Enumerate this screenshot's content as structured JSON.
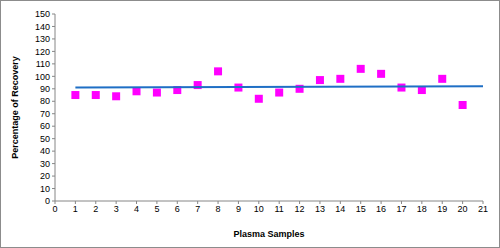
{
  "chart_data": {
    "type": "scatter",
    "x_label": "Plasma Samples",
    "y_label": "Percentage of Recovery",
    "xlim": [
      0,
      21
    ],
    "xticks": [
      0,
      1,
      2,
      3,
      4,
      5,
      6,
      7,
      8,
      9,
      10,
      11,
      12,
      13,
      14,
      15,
      16,
      17,
      18,
      19,
      20,
      21
    ],
    "ylim": [
      0,
      150
    ],
    "yticks": [
      0,
      10,
      20,
      30,
      40,
      50,
      60,
      70,
      80,
      90,
      100,
      110,
      120,
      130,
      140,
      150
    ],
    "grid": false,
    "series": [
      {
        "type": "scatter",
        "color": "#ff00ff",
        "marker": "square",
        "x": [
          1,
          2,
          3,
          4,
          5,
          6,
          7,
          8,
          9,
          10,
          11,
          12,
          13,
          14,
          15,
          16,
          17,
          18,
          19,
          20
        ],
        "values": [
          85,
          85,
          84,
          88,
          87,
          89,
          93,
          104,
          91,
          82,
          87,
          90,
          97,
          98,
          106,
          102,
          91,
          89,
          98,
          77
        ]
      },
      {
        "type": "line",
        "color": "#1f6fc5",
        "x": [
          1,
          21
        ],
        "values": [
          91,
          92
        ]
      }
    ]
  }
}
